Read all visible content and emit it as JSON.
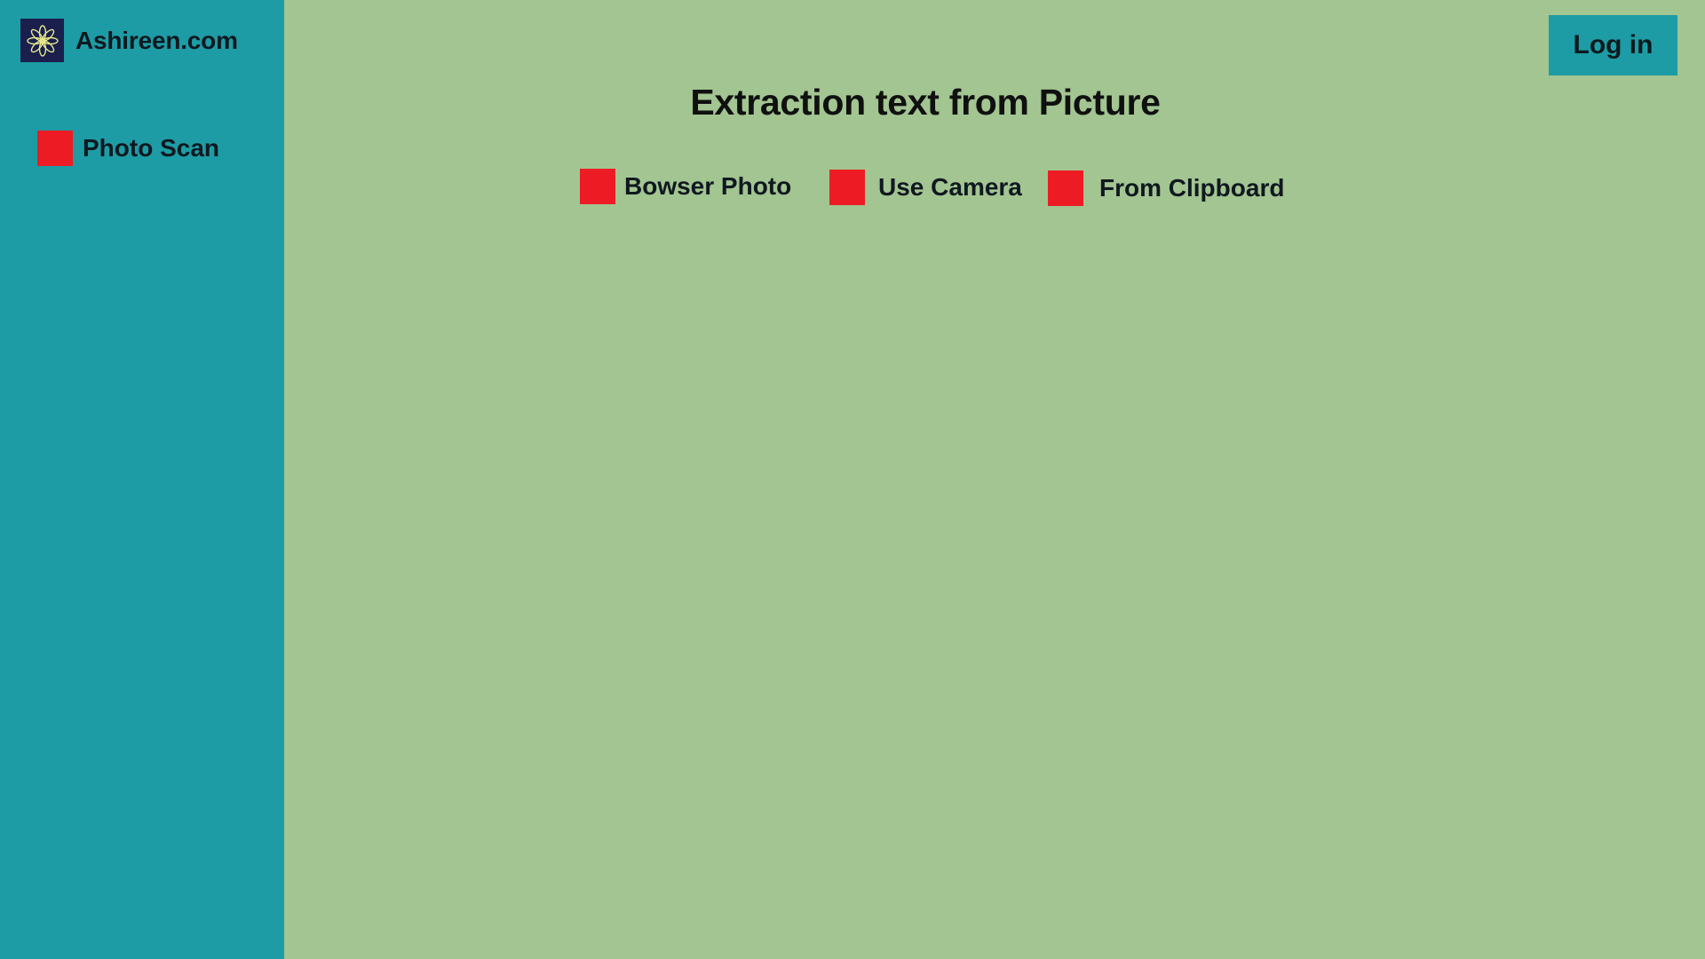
{
  "brand": {
    "name": "Ashireen.com",
    "logo_icon": "flower-mandala-icon"
  },
  "sidebar": {
    "items": [
      {
        "label": "Photo Scan",
        "icon": "red-square-icon"
      }
    ]
  },
  "header": {
    "login_label": "Log in"
  },
  "main": {
    "title": "Extraction text from Picture",
    "options": [
      {
        "label": "Bowser Photo",
        "icon": "red-square-icon"
      },
      {
        "label": "Use Camera",
        "icon": "red-square-icon"
      },
      {
        "label": "From Clipboard",
        "icon": "red-square-icon"
      }
    ]
  },
  "colors": {
    "sidebar_bg": "#1d9ca5",
    "main_bg": "#a2c591",
    "accent_red": "#ed1c24",
    "logo_bg": "#1a1f4d"
  }
}
